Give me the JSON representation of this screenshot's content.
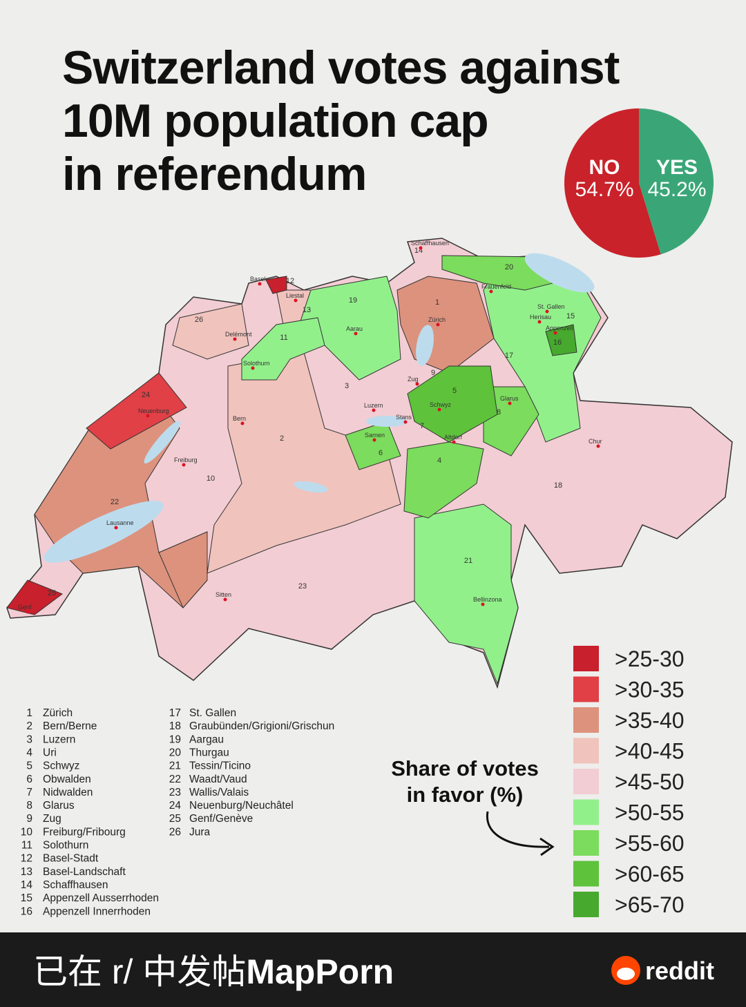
{
  "title": [
    "Switzerland votes against",
    "10M population cap",
    "in referendum"
  ],
  "chart_data": {
    "type": "pie",
    "categories": [
      "NO",
      "YES"
    ],
    "values": [
      54.7,
      45.2
    ],
    "value_labels": [
      "54.7%",
      "45.2%"
    ],
    "colors": [
      "#c9222a",
      "#3aa677"
    ]
  },
  "map": {
    "canton_numbers": [
      "14",
      "20",
      "12",
      "19",
      "1",
      "13",
      "26",
      "15",
      "11",
      "16",
      "17",
      "9",
      "3",
      "5",
      "7",
      "8",
      "6",
      "4",
      "2",
      "10",
      "18",
      "22",
      "21",
      "23",
      "24",
      "25"
    ],
    "cities": [
      "Schaffhausen",
      "Basel",
      "Frauenfeld",
      "Liestal",
      "St. Gallen",
      "Herisau",
      "Appenzell",
      "Zürich",
      "Delémont",
      "Aarau",
      "Solothurn",
      "Zug",
      "Luzern",
      "Schwyz",
      "Glarus",
      "Neuenburg",
      "Bern",
      "Stans",
      "Sarnen",
      "Altdorf",
      "Chur",
      "Freiburg",
      "Lausanne",
      "Sitten",
      "Bellinzona",
      "Genf"
    ]
  },
  "legend": {
    "title": [
      "Share of votes",
      "in favor (%)"
    ],
    "items": [
      {
        "label": ">25-30",
        "color": "#c8202c"
      },
      {
        "label": ">30-35",
        "color": "#e04046"
      },
      {
        "label": ">35-40",
        "color": "#dd927d"
      },
      {
        "label": ">40-45",
        "color": "#f0c3bd"
      },
      {
        "label": ">45-50",
        "color": "#f2cdd3"
      },
      {
        "label": ">50-55",
        "color": "#92f08b"
      },
      {
        "label": ">55-60",
        "color": "#7cdc5d"
      },
      {
        "label": ">60-65",
        "color": "#5ec23b"
      },
      {
        "label": ">65-70",
        "color": "#47a92e"
      }
    ]
  },
  "canton_list": [
    {
      "num": "1",
      "name": "Zürich"
    },
    {
      "num": "2",
      "name": "Bern/Berne"
    },
    {
      "num": "3",
      "name": "Luzern"
    },
    {
      "num": "4",
      "name": "Uri"
    },
    {
      "num": "5",
      "name": "Schwyz"
    },
    {
      "num": "6",
      "name": "Obwalden"
    },
    {
      "num": "7",
      "name": "Nidwalden"
    },
    {
      "num": "8",
      "name": "Glarus"
    },
    {
      "num": "9",
      "name": "Zug"
    },
    {
      "num": "10",
      "name": "Freiburg/Fribourg"
    },
    {
      "num": "11",
      "name": "Solothurn"
    },
    {
      "num": "12",
      "name": "Basel-Stadt"
    },
    {
      "num": "13",
      "name": "Basel-Landschaft"
    },
    {
      "num": "14",
      "name": "Schaffhausen"
    },
    {
      "num": "15",
      "name": "Appenzell Ausserrhoden"
    },
    {
      "num": "16",
      "name": "Appenzell Innerrhoden"
    },
    {
      "num": "17",
      "name": "St. Gallen"
    },
    {
      "num": "18",
      "name": "Graubünden/Grigioni/Grischun"
    },
    {
      "num": "19",
      "name": "Aargau"
    },
    {
      "num": "20",
      "name": "Thurgau"
    },
    {
      "num": "21",
      "name": "Tessin/Ticino"
    },
    {
      "num": "22",
      "name": "Waadt/Vaud"
    },
    {
      "num": "23",
      "name": "Wallis/Valais"
    },
    {
      "num": "24",
      "name": "Neuenburg/Neuchâtel"
    },
    {
      "num": "25",
      "name": "Genf/Genève"
    },
    {
      "num": "26",
      "name": "Jura"
    }
  ],
  "footer": {
    "prefix": "已在 r/ 中发帖",
    "subreddit": "MapPorn",
    "brand": "reddit"
  }
}
